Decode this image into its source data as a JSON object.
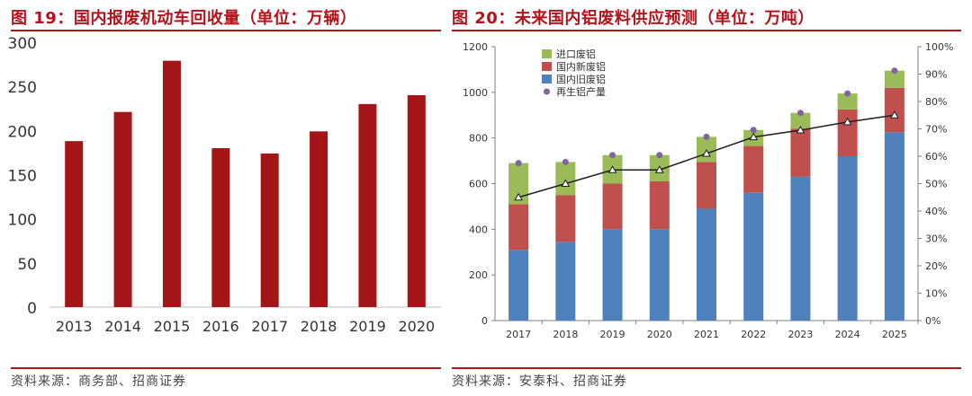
{
  "left": {
    "title": "图 19：国内报废机动车回收量（单位：万辆）",
    "source": "资料来源：商务部、招商证券"
  },
  "right": {
    "title": "图 20：未来国内铝废料供应预测（单位：万吨）",
    "source": "资料来源：安泰科、招商证券"
  },
  "colors": {
    "accent": "#b5121b",
    "bar_left": "#a31517",
    "old_scrap": "#4f81bd",
    "new_scrap": "#c0504d",
    "import_scrap": "#9bbb59",
    "recycled": "#8064a2",
    "ratio_line": "#1f1f1f"
  },
  "chart_data": [
    {
      "type": "bar",
      "categories": [
        "2013",
        "2014",
        "2015",
        "2016",
        "2017",
        "2018",
        "2019",
        "2020"
      ],
      "values": [
        188,
        221,
        279,
        180,
        174,
        199,
        230,
        240
      ],
      "ylim": [
        0,
        300
      ],
      "yticks": [
        0,
        50,
        100,
        150,
        200,
        250,
        300
      ],
      "grid": false
    },
    {
      "type": "bar",
      "stacked": true,
      "categories": [
        "2017",
        "2018",
        "2019",
        "2020",
        "2021",
        "2022",
        "2023",
        "2024",
        "2025"
      ],
      "series": [
        {
          "name": "国内旧废铝",
          "values": [
            310,
            345,
            400,
            400,
            490,
            560,
            630,
            720,
            825
          ]
        },
        {
          "name": "国内新废铝",
          "values": [
            200,
            205,
            200,
            210,
            205,
            205,
            210,
            205,
            195
          ]
        },
        {
          "name": "进口废铝",
          "values": [
            180,
            145,
            125,
            115,
            110,
            70,
            70,
            70,
            75
          ]
        }
      ],
      "scatter": {
        "name": "再生铝产量",
        "values": [
          690,
          695,
          725,
          725,
          805,
          835,
          910,
          995,
          1095
        ]
      },
      "line": {
        "name": "",
        "values": [
          0.45,
          0.5,
          0.55,
          0.55,
          0.61,
          0.67,
          0.695,
          0.725,
          0.75
        ]
      },
      "ylim": [
        0,
        1200
      ],
      "yticks": [
        0,
        200,
        400,
        600,
        800,
        1000,
        1200
      ],
      "y2lim": [
        0,
        1
      ],
      "y2ticks": [
        "0%",
        "10%",
        "20%",
        "30%",
        "40%",
        "50%",
        "60%",
        "70%",
        "80%",
        "90%",
        "100%"
      ],
      "legend": "top-left",
      "grid": false
    }
  ]
}
